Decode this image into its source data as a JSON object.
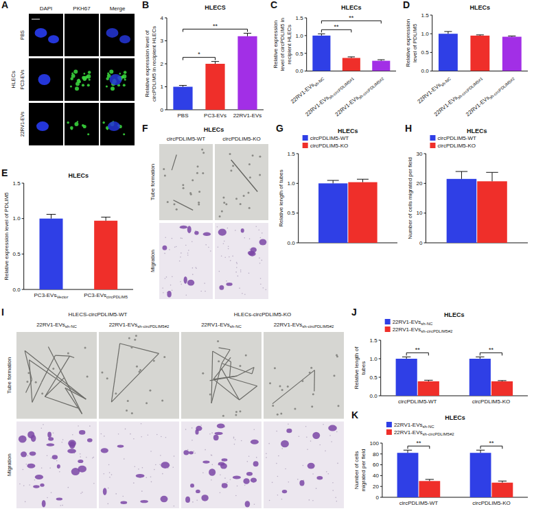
{
  "chart_data": [
    {
      "panel": "B",
      "type": "bar",
      "title": "HLECS",
      "y_label": "Relative expression level of circPDLIM5 in recipient HLECs",
      "categories": [
        "PBS",
        "PC3-EVs",
        "22RV1-EVs"
      ],
      "values": [
        1.0,
        2.0,
        3.2
      ],
      "errors": [
        0.06,
        0.1,
        0.13
      ],
      "colors": [
        "#2f3fe6",
        "#ef2f2a",
        "#a22fe6"
      ],
      "ylim": [
        0,
        4
      ],
      "yticks": [
        0,
        1,
        2,
        3,
        4
      ],
      "comparisons": [
        {
          "label": "*",
          "between": [
            0,
            1
          ]
        },
        {
          "label": "**",
          "between": [
            0,
            2
          ]
        }
      ]
    },
    {
      "panel": "C",
      "type": "bar",
      "title": "HLECs",
      "y_label": "Relative expression level of circPDLIM5 in recipient HLECs",
      "categories": [
        "22RV1-EVs",
        "22RV1-EVs",
        "22RV1-EVs"
      ],
      "category_subscripts": [
        "sh-NC",
        "sh-circPDLIM5#1",
        "sh-circPDLIM5#2"
      ],
      "values": [
        1.0,
        0.37,
        0.29
      ],
      "errors": [
        0.05,
        0.03,
        0.03
      ],
      "colors": [
        "#2f3fe6",
        "#ef2f2a",
        "#a22fe6"
      ],
      "ylim": [
        0,
        1.5
      ],
      "yticks": [
        {
          "value": 0,
          "label": "0.0"
        },
        {
          "value": 0.5,
          "label": "0.5"
        },
        {
          "value": 1,
          "label": "1.0"
        },
        {
          "value": 1.5,
          "label": "1.5"
        }
      ],
      "comparisons": [
        {
          "label": "**",
          "between": [
            0,
            1
          ]
        },
        {
          "label": "**",
          "between": [
            0,
            2
          ]
        }
      ]
    },
    {
      "panel": "D",
      "type": "bar",
      "title": "HLECs",
      "y_label": "Relative expression level of PDLIM5",
      "categories": [
        "22RV1-EVs",
        "22RV1-EVs",
        "22RV1-EVs"
      ],
      "category_subscripts": [
        "sh-NC",
        "sh-circPDLIM5#1",
        "sh-circPDLIM5#2"
      ],
      "values": [
        1.0,
        0.95,
        0.92
      ],
      "errors": [
        0.06,
        0.02,
        0.02
      ],
      "colors": [
        "#2f3fe6",
        "#ef2f2a",
        "#a22fe6"
      ],
      "ylim": [
        0,
        1.5
      ],
      "yticks": [
        {
          "value": 0,
          "label": "0.0"
        },
        {
          "value": 0.5,
          "label": "0.5"
        },
        {
          "value": 1,
          "label": "1.0"
        },
        {
          "value": 1.5,
          "label": "1.5"
        }
      ]
    },
    {
      "panel": "E",
      "type": "bar",
      "title": "HLECs",
      "y_label": "Relative expression level of PDLIM5",
      "categories": [
        "PC3-EVs",
        "PC3-EVs"
      ],
      "category_subscripts": [
        "Vector",
        "circPDLIM5"
      ],
      "values": [
        1.0,
        0.97
      ],
      "errors": [
        0.06,
        0.05
      ],
      "colors": [
        "#2f3fe6",
        "#ef2f2a"
      ],
      "ylim": [
        0,
        1.5
      ],
      "yticks": [
        {
          "value": 0,
          "label": "0.0"
        },
        {
          "value": 0.5,
          "label": "0.5"
        },
        {
          "value": 1,
          "label": "1.0"
        },
        {
          "value": 1.5,
          "label": "1.5"
        }
      ]
    },
    {
      "panel": "G",
      "type": "bar",
      "title": "HLECs",
      "y_label": "Relative length of tubes",
      "categories": [
        null
      ],
      "series": [
        {
          "name": "circPDLIM5-WT",
          "color": "#2f3fe6",
          "values": [
            1.0
          ],
          "errors": [
            0.05
          ]
        },
        {
          "name": "circPDLIM5-KO",
          "color": "#ef2f2a",
          "values": [
            1.02
          ],
          "errors": [
            0.05
          ]
        }
      ],
      "legend": "top",
      "ylim": [
        0,
        1.5
      ],
      "yticks": [
        {
          "value": 0,
          "label": "0.0"
        },
        {
          "value": 0.5,
          "label": "0.5"
        },
        {
          "value": 1,
          "label": "1.0"
        },
        {
          "value": 1.5,
          "label": "1.5"
        }
      ]
    },
    {
      "panel": "H",
      "type": "bar",
      "title": "HLECs",
      "y_label": "Number of cells migrated per field",
      "categories": [
        null
      ],
      "series": [
        {
          "name": "circPDLIM5-WT",
          "color": "#2f3fe6",
          "values": [
            21.5
          ],
          "errors": [
            2.5
          ]
        },
        {
          "name": "circPDLIM5-KO",
          "color": "#ef2f2a",
          "values": [
            20.7
          ],
          "errors": [
            3.0
          ]
        }
      ],
      "legend": "top",
      "ylim": [
        0,
        30
      ],
      "yticks": [
        0,
        10,
        20,
        30
      ]
    },
    {
      "panel": "J",
      "type": "bar",
      "title": "HLECs",
      "y_label": "Relative length of tubes",
      "categories": [
        "circPDLIM5-WT",
        "circPDLIM5-KO"
      ],
      "series": [
        {
          "name": "22RV1-EVs",
          "name_subscript": "sh-NC",
          "color": "#2f3fe6",
          "values": [
            1.0,
            1.0
          ],
          "errors": [
            0.05,
            0.05
          ]
        },
        {
          "name": "22RV1-EVs",
          "name_subscript": "sh-circPDLIM5#2",
          "color": "#ef2f2a",
          "values": [
            0.39,
            0.39
          ],
          "errors": [
            0.03,
            0.02
          ]
        }
      ],
      "legend": "top",
      "ylim": [
        0,
        1.5
      ],
      "yticks": [
        {
          "value": 0,
          "label": "0.0"
        },
        {
          "value": 0.5,
          "label": "0.5"
        },
        {
          "value": 1,
          "label": "1.0"
        },
        {
          "value": 1.5,
          "label": "1.5"
        }
      ],
      "comparisons": [
        {
          "label": "**",
          "group": 0
        },
        {
          "label": "**",
          "group": 1
        }
      ]
    },
    {
      "panel": "K",
      "type": "bar",
      "title": "HLECs",
      "y_label": "Number of cells migrated per field",
      "categories": [
        "circPDLIM5-WT",
        "circPDLIM5-KO"
      ],
      "series": [
        {
          "name": "22RV1-EVs",
          "name_subscript": "sh-NC",
          "color": "#2f3fe6",
          "values": [
            82,
            82
          ],
          "errors": [
            5,
            5
          ]
        },
        {
          "name": "22RV1-EVs",
          "name_subscript": "sh-circPDLIM5#2",
          "color": "#ef2f2a",
          "values": [
            30,
            27
          ],
          "errors": [
            3,
            3
          ]
        }
      ],
      "legend": "top",
      "ylim": [
        0,
        100
      ],
      "yticks": [
        0,
        20,
        40,
        60,
        80,
        100
      ],
      "comparisons": [
        {
          "label": "**",
          "group": 0
        },
        {
          "label": "**",
          "group": 1
        }
      ]
    }
  ],
  "image_panels": [
    {
      "panel": "A",
      "side_label": "HLECs",
      "columns": [
        "DAPI",
        "PKH67",
        "Merge"
      ],
      "rows": [
        "PBS",
        "PC3-EVs",
        "22RV1-EVs"
      ]
    },
    {
      "panel": "F",
      "title": "HLECs",
      "columns": [
        "circPDLIM5-WT",
        "circPDLIM5-KO"
      ],
      "rows": [
        "Tube formation",
        "Migration"
      ]
    },
    {
      "panel": "I",
      "groups": [
        "HLECS-circPDLIM5-WT",
        "HLECs-circPDLIM5-KO"
      ],
      "columns": [
        {
          "text": "22RV1-EVs",
          "subscript": "sh-NC"
        },
        {
          "text": "22RV1-EVs",
          "subscript": "sh-circPDLIM5#2"
        }
      ],
      "rows": [
        "Tube formation",
        "Migration"
      ]
    }
  ]
}
